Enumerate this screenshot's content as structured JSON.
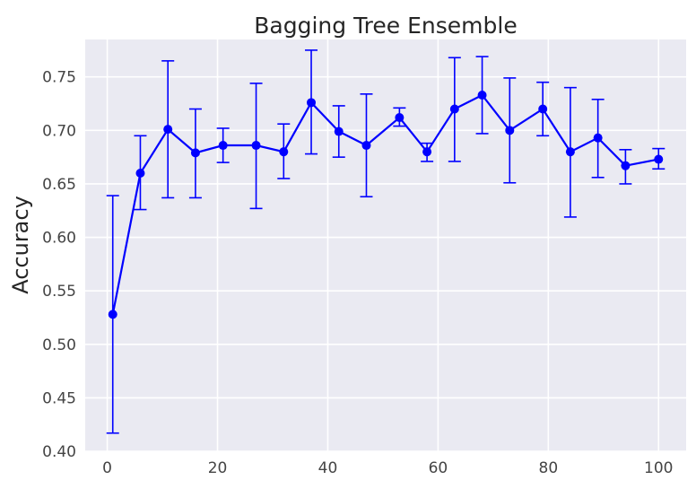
{
  "chart_data": {
    "type": "line",
    "title": "Bagging Tree Ensemble",
    "xlabel": "",
    "ylabel": "Accuracy",
    "xlim": [
      -4,
      105
    ],
    "ylim": [
      0.4,
      0.785
    ],
    "xticks": [
      0,
      20,
      40,
      60,
      80,
      100
    ],
    "xtick_labels": [
      "0",
      "20",
      "40",
      "60",
      "80",
      "100"
    ],
    "yticks": [
      0.4,
      0.45,
      0.5,
      0.55,
      0.6,
      0.65,
      0.7,
      0.75
    ],
    "ytick_labels": [
      "0.40",
      "0.45",
      "0.50",
      "0.55",
      "0.60",
      "0.65",
      "0.70",
      "0.75"
    ],
    "grid": true,
    "color": "#0000ff",
    "background": "#eaeaf2",
    "series": [
      {
        "x": [
          1,
          6,
          11,
          16,
          21,
          27,
          32,
          37,
          42,
          47,
          53,
          58,
          63,
          68,
          73,
          79,
          84,
          89,
          94,
          100
        ],
        "y": [
          0.528,
          0.66,
          0.701,
          0.679,
          0.686,
          0.686,
          0.68,
          0.726,
          0.699,
          0.686,
          0.712,
          0.68,
          0.72,
          0.733,
          0.7,
          0.72,
          0.68,
          0.693,
          0.667,
          0.673
        ],
        "y_low": [
          0.417,
          0.626,
          0.637,
          0.637,
          0.67,
          0.627,
          0.655,
          0.678,
          0.675,
          0.638,
          0.704,
          0.671,
          0.671,
          0.697,
          0.651,
          0.695,
          0.619,
          0.656,
          0.65,
          0.664
        ],
        "y_high": [
          0.639,
          0.695,
          0.765,
          0.72,
          0.702,
          0.744,
          0.706,
          0.775,
          0.723,
          0.734,
          0.721,
          0.688,
          0.768,
          0.769,
          0.749,
          0.745,
          0.74,
          0.729,
          0.682,
          0.683
        ]
      }
    ]
  }
}
